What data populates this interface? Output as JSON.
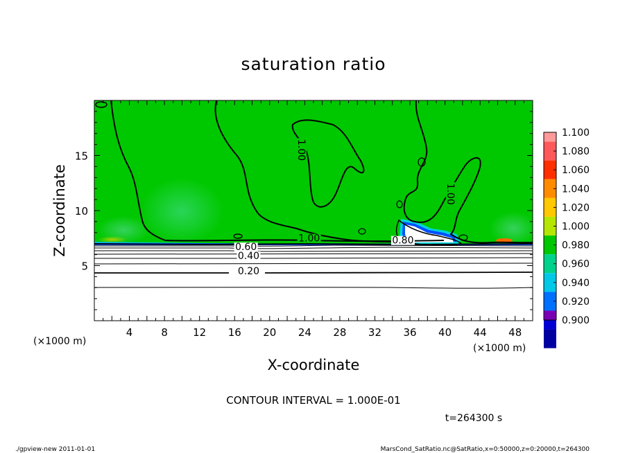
{
  "chart_data": {
    "type": "heatmap",
    "title": "saturation ratio",
    "xlabel": "X-coordinate",
    "ylabel": "Z-coordinate",
    "x_unit": "(×1000 m)",
    "y_unit": "(×1000 m)",
    "xlim": [
      0,
      50
    ],
    "ylim": [
      0,
      20
    ],
    "x_ticks": [
      "4",
      "8",
      "12",
      "16",
      "20",
      "24",
      "28",
      "32",
      "36",
      "40",
      "44",
      "48"
    ],
    "y_ticks": [
      "5",
      "10",
      "15"
    ],
    "colorbar": {
      "levels": [
        "1.100",
        "1.080",
        "1.060",
        "1.040",
        "1.020",
        "1.000",
        "0.980",
        "0.960",
        "0.940",
        "0.920",
        "0.900"
      ],
      "colors": [
        "#ff9a9a",
        "#ff5a5a",
        "#ff3000",
        "#ff8c00",
        "#ffc800",
        "#b4e600",
        "#00c800",
        "#00d28c",
        "#00c8e6",
        "#0070ff",
        "#0000d2",
        "#0000a0",
        "#7a00b4"
      ]
    },
    "contour_labels": [
      {
        "text": "1.00",
        "x": 23.5,
        "z": 15.5
      },
      {
        "text": "1.00",
        "x": 40.5,
        "z": 11.5
      },
      {
        "text": "1.00",
        "x": 24.5,
        "z": 7.2
      },
      {
        "text": "0.80",
        "x": 35.2,
        "z": 7.0
      },
      {
        "text": "0.60",
        "x": 17.3,
        "z": 6.4
      },
      {
        "text": "0.40",
        "x": 17.6,
        "z": 5.6
      },
      {
        "text": "0.20",
        "x": 17.6,
        "z": 4.2
      }
    ],
    "contour_interval": "CONTOUR INTERVAL = 1.000E-01",
    "time": "t=264300 s"
  },
  "footer": {
    "left": "./gpview-new  2011-01-01",
    "right": "MarsCond_SatRatio.nc@SatRatio,x=0:50000,z=0:20000,t=264300"
  }
}
